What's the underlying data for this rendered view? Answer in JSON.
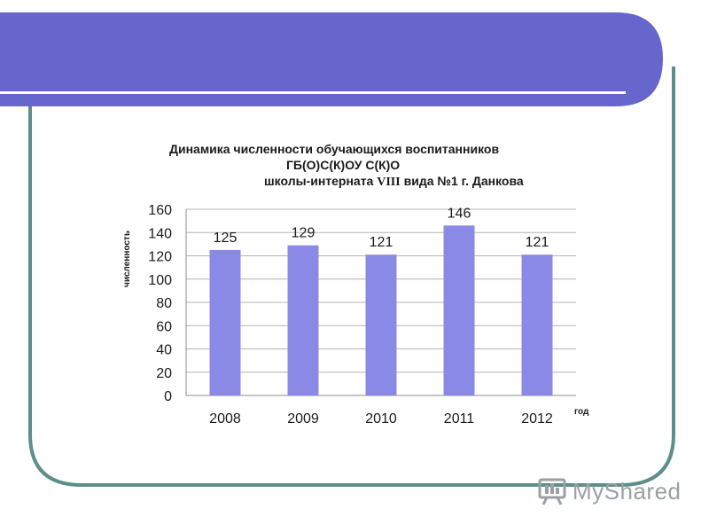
{
  "theme": {
    "banner_color": "#6666cc",
    "frame_color": "#5c8f8a",
    "bar_color": "#8a8ae6",
    "watermark_color": "#9aa0a3"
  },
  "title": {
    "line1": "Динамика численности обучающихся воспитанников",
    "line2": "ГБ(О)С(К)ОУ С(К)О",
    "line3_pre": "школы-интерната ",
    "line3_roman": "VIII",
    "line3_post": " вида №1 г. Данкова"
  },
  "watermark": {
    "logo_icon": "presentation-board-icon",
    "text": "MyShared"
  },
  "chart_data": {
    "type": "bar",
    "categories": [
      "2008",
      "2009",
      "2010",
      "2011",
      "2012"
    ],
    "values": [
      125,
      129,
      121,
      146,
      121
    ],
    "data_labels": [
      "125",
      "129",
      "121",
      "146",
      "121"
    ],
    "xlabel": "год",
    "ylabel": "численность",
    "ylim": [
      0,
      160
    ],
    "yticks": [
      0,
      20,
      40,
      60,
      80,
      100,
      120,
      140,
      160
    ],
    "ytick_labels": [
      "0",
      "20",
      "40",
      "60",
      "80",
      "100",
      "120",
      "140",
      "160"
    ],
    "grid": true,
    "legend": "none"
  }
}
